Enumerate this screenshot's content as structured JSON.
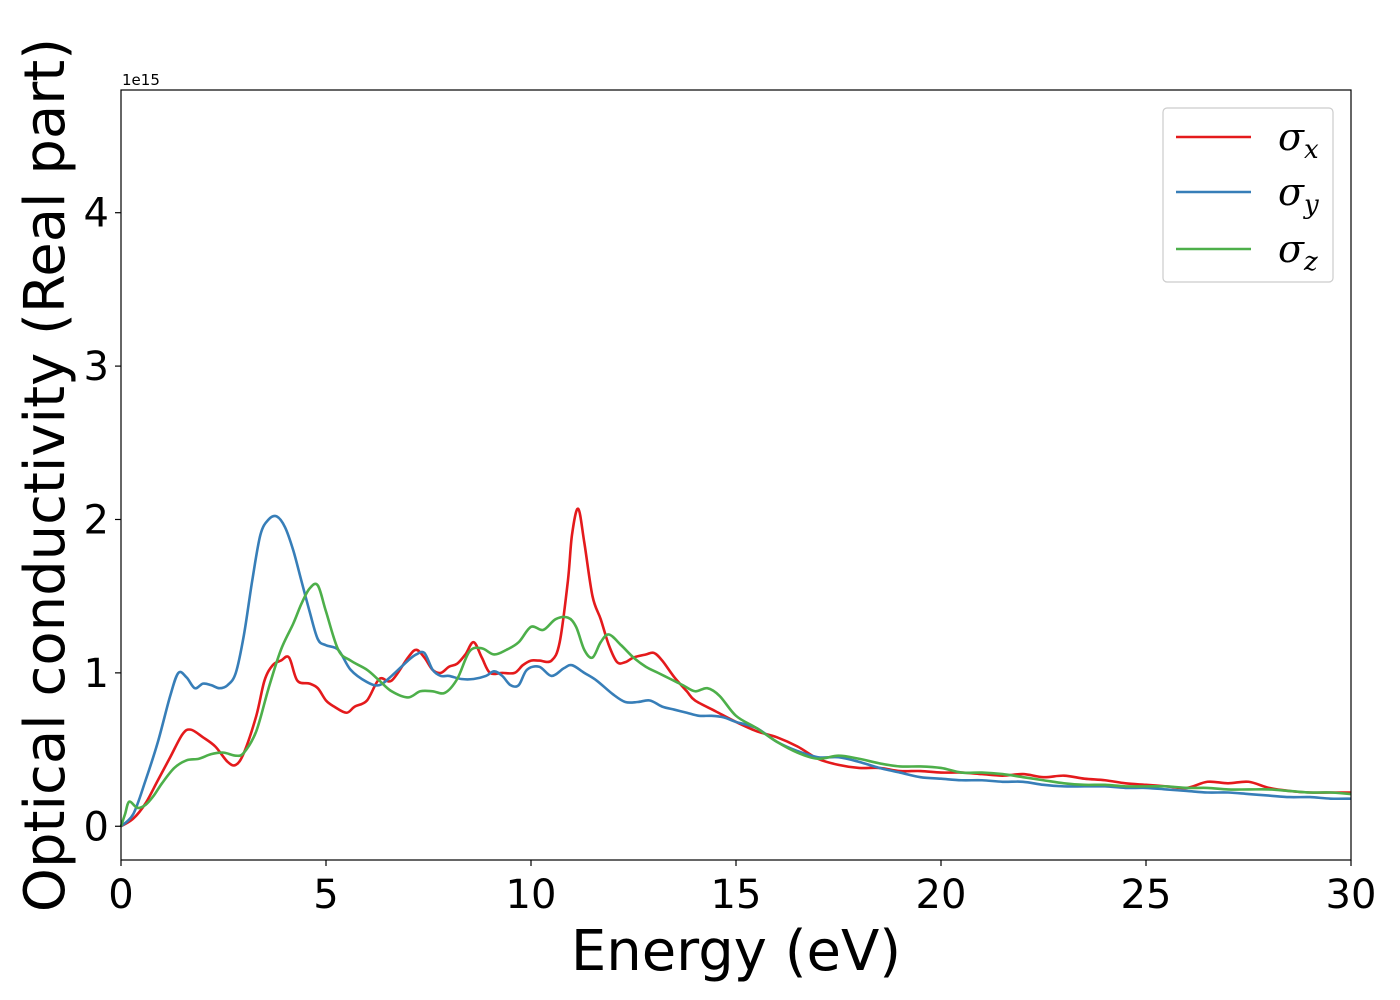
{
  "chart_data": {
    "type": "line",
    "title": "",
    "xlabel": "Energy (eV)",
    "ylabel": "Optical conductivity (Real part)",
    "y_offset_text": "1e15",
    "xlim": [
      0,
      30
    ],
    "ylim": [
      -0.22,
      4.8
    ],
    "xticks": [
      0,
      5,
      10,
      15,
      20,
      25,
      30
    ],
    "xtick_labels": [
      "0",
      "5",
      "10",
      "15",
      "20",
      "25",
      "30"
    ],
    "yticks": [
      0,
      1,
      2,
      3,
      4
    ],
    "ytick_labels": [
      "0",
      "1",
      "2",
      "3",
      "4"
    ],
    "grid": false,
    "legend_position": "top-right",
    "series": [
      {
        "name": "σx",
        "symbol": "σ",
        "subscript": "x",
        "color": "#e41a1c",
        "x": [
          0,
          0.3,
          0.6,
          0.9,
          1.2,
          1.5,
          1.7,
          2.0,
          2.3,
          2.6,
          2.8,
          3.0,
          3.3,
          3.5,
          3.7,
          3.9,
          4.1,
          4.3,
          4.6,
          4.8,
          5.0,
          5.2,
          5.5,
          5.7,
          6.0,
          6.3,
          6.6,
          7.0,
          7.2,
          7.4,
          7.6,
          7.8,
          8.0,
          8.2,
          8.4,
          8.6,
          8.8,
          9.0,
          9.3,
          9.6,
          9.8,
          10.0,
          10.2,
          10.5,
          10.7,
          10.9,
          11.0,
          11.15,
          11.3,
          11.5,
          11.7,
          11.9,
          12.1,
          12.3,
          12.5,
          12.8,
          13.0,
          13.2,
          13.5,
          13.8,
          14.0,
          14.5,
          15.0,
          15.5,
          16.0,
          16.5,
          17.0,
          17.5,
          18.0,
          18.5,
          19.0,
          19.5,
          20.0,
          20.5,
          21.0,
          21.5,
          22.0,
          22.5,
          23.0,
          23.5,
          24.0,
          24.5,
          25.0,
          25.5,
          26.0,
          26.5,
          27.0,
          27.5,
          28.0,
          28.5,
          29.0,
          29.5,
          30.0
        ],
        "values": [
          0.0,
          0.05,
          0.15,
          0.3,
          0.45,
          0.6,
          0.63,
          0.58,
          0.52,
          0.42,
          0.4,
          0.48,
          0.72,
          0.95,
          1.05,
          1.08,
          1.1,
          0.95,
          0.93,
          0.9,
          0.82,
          0.78,
          0.74,
          0.78,
          0.82,
          0.96,
          0.95,
          1.1,
          1.15,
          1.1,
          1.02,
          1.0,
          1.04,
          1.06,
          1.12,
          1.2,
          1.1,
          1.0,
          1.0,
          1.0,
          1.05,
          1.08,
          1.08,
          1.08,
          1.2,
          1.6,
          1.9,
          2.07,
          1.85,
          1.5,
          1.35,
          1.18,
          1.07,
          1.07,
          1.1,
          1.12,
          1.13,
          1.08,
          0.97,
          0.88,
          0.82,
          0.75,
          0.68,
          0.62,
          0.58,
          0.52,
          0.44,
          0.4,
          0.38,
          0.38,
          0.36,
          0.36,
          0.35,
          0.35,
          0.34,
          0.33,
          0.34,
          0.32,
          0.33,
          0.31,
          0.3,
          0.28,
          0.27,
          0.26,
          0.25,
          0.29,
          0.28,
          0.29,
          0.25,
          0.23,
          0.22,
          0.22,
          0.22
        ]
      },
      {
        "name": "σy",
        "symbol": "σ",
        "subscript": "y",
        "color": "#377eb8",
        "x": [
          0,
          0.3,
          0.6,
          0.9,
          1.2,
          1.4,
          1.6,
          1.8,
          2.0,
          2.2,
          2.4,
          2.6,
          2.8,
          3.0,
          3.2,
          3.4,
          3.6,
          3.8,
          4.0,
          4.2,
          4.4,
          4.6,
          4.8,
          5.0,
          5.3,
          5.6,
          6.0,
          6.3,
          6.6,
          7.0,
          7.2,
          7.4,
          7.6,
          7.8,
          8.0,
          8.3,
          8.6,
          8.9,
          9.1,
          9.3,
          9.5,
          9.7,
          9.9,
          10.2,
          10.5,
          10.8,
          11.0,
          11.3,
          11.6,
          12.0,
          12.3,
          12.6,
          12.9,
          13.2,
          13.5,
          13.8,
          14.1,
          14.4,
          14.7,
          15.0,
          15.5,
          16.0,
          16.5,
          17.0,
          17.5,
          18.0,
          18.5,
          19.0,
          19.5,
          20.0,
          20.5,
          21.0,
          21.5,
          22.0,
          22.5,
          23.0,
          23.5,
          24.0,
          24.5,
          25.0,
          25.5,
          26.0,
          26.5,
          27.0,
          27.5,
          28.0,
          28.5,
          29.0,
          29.5,
          30.0
        ],
        "values": [
          0.0,
          0.08,
          0.3,
          0.55,
          0.85,
          1.0,
          0.97,
          0.9,
          0.93,
          0.92,
          0.9,
          0.92,
          1.0,
          1.25,
          1.6,
          1.9,
          2.0,
          2.02,
          1.95,
          1.8,
          1.6,
          1.4,
          1.22,
          1.18,
          1.15,
          1.02,
          0.94,
          0.92,
          0.98,
          1.08,
          1.12,
          1.13,
          1.02,
          0.98,
          0.98,
          0.96,
          0.96,
          0.98,
          1.01,
          0.98,
          0.92,
          0.92,
          1.02,
          1.04,
          0.98,
          1.03,
          1.05,
          1.0,
          0.95,
          0.86,
          0.81,
          0.81,
          0.82,
          0.78,
          0.76,
          0.74,
          0.72,
          0.72,
          0.71,
          0.68,
          0.64,
          0.55,
          0.49,
          0.45,
          0.45,
          0.42,
          0.38,
          0.35,
          0.32,
          0.31,
          0.3,
          0.3,
          0.29,
          0.29,
          0.27,
          0.26,
          0.26,
          0.26,
          0.25,
          0.25,
          0.24,
          0.23,
          0.22,
          0.22,
          0.21,
          0.2,
          0.19,
          0.19,
          0.18,
          0.18
        ]
      },
      {
        "name": "σz",
        "symbol": "σ",
        "subscript": "z",
        "color": "#4daf4a",
        "x": [
          0,
          0.1,
          0.2,
          0.4,
          0.6,
          0.8,
          1.0,
          1.3,
          1.6,
          1.9,
          2.2,
          2.5,
          2.8,
          3.0,
          3.3,
          3.6,
          3.9,
          4.2,
          4.4,
          4.6,
          4.8,
          5.0,
          5.3,
          5.6,
          6.0,
          6.3,
          6.6,
          7.0,
          7.3,
          7.6,
          7.9,
          8.2,
          8.5,
          8.8,
          9.1,
          9.4,
          9.7,
          10.0,
          10.3,
          10.6,
          10.9,
          11.1,
          11.3,
          11.5,
          11.7,
          11.9,
          12.2,
          12.5,
          12.8,
          13.1,
          13.4,
          13.7,
          14.0,
          14.3,
          14.6,
          15.0,
          15.5,
          16.0,
          16.5,
          17.0,
          17.5,
          18.0,
          18.5,
          19.0,
          19.5,
          20.0,
          20.5,
          21.0,
          21.5,
          22.0,
          22.5,
          23.0,
          23.5,
          24.0,
          24.5,
          25.0,
          25.5,
          26.0,
          26.5,
          27.0,
          27.5,
          28.0,
          28.5,
          29.0,
          29.5,
          30.0
        ],
        "values": [
          0.0,
          0.08,
          0.16,
          0.12,
          0.14,
          0.2,
          0.28,
          0.38,
          0.43,
          0.44,
          0.47,
          0.48,
          0.46,
          0.48,
          0.62,
          0.9,
          1.15,
          1.32,
          1.45,
          1.55,
          1.57,
          1.4,
          1.15,
          1.08,
          1.02,
          0.95,
          0.88,
          0.84,
          0.88,
          0.88,
          0.87,
          0.96,
          1.14,
          1.16,
          1.12,
          1.15,
          1.2,
          1.3,
          1.28,
          1.35,
          1.36,
          1.3,
          1.15,
          1.1,
          1.2,
          1.25,
          1.18,
          1.1,
          1.04,
          1.0,
          0.96,
          0.92,
          0.88,
          0.9,
          0.85,
          0.72,
          0.64,
          0.55,
          0.48,
          0.44,
          0.46,
          0.44,
          0.41,
          0.39,
          0.39,
          0.38,
          0.35,
          0.35,
          0.34,
          0.32,
          0.3,
          0.28,
          0.27,
          0.27,
          0.26,
          0.26,
          0.26,
          0.25,
          0.25,
          0.24,
          0.24,
          0.24,
          0.23,
          0.22,
          0.22,
          0.21
        ]
      }
    ]
  }
}
